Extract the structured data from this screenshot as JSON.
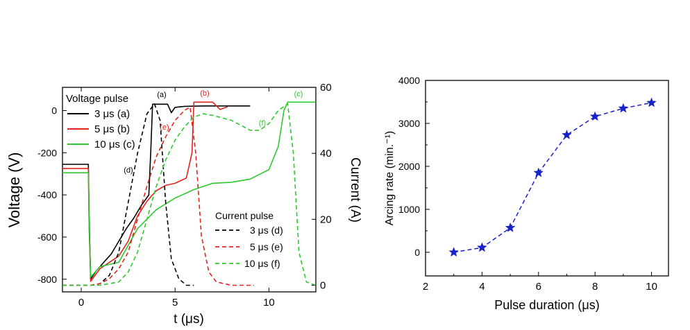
{
  "chart_data": [
    {
      "type": "line",
      "xlabel": "t (μs)",
      "ylabel": "Voltage (V)",
      "y2label": "Current (A)",
      "xlim": [
        -1,
        12.5
      ],
      "ylim": [
        -860,
        110
      ],
      "y2lim": [
        -2,
        60
      ],
      "x_ticks": [
        "0",
        "5",
        "10"
      ],
      "y_ticks": [
        "0",
        "-200",
        "-400",
        "-600",
        "-800"
      ],
      "y2_ticks": [
        "60",
        "40",
        "20",
        "0"
      ],
      "legend_voltage": {
        "title": "Voltage pulse",
        "entries": [
          "3 μs (a)",
          "5 μs (b)",
          "10 μs (c)"
        ]
      },
      "legend_current": {
        "title": "Current pulse",
        "entries": [
          "3 μs (d)",
          "5 μs (e)",
          "10 μs (f)"
        ]
      },
      "annotations": [
        "(a)",
        "(b)",
        "(c)",
        "(d)",
        "(e)",
        "(f)"
      ],
      "series": [
        {
          "name": "3 μs (a)",
          "axis": "left",
          "color": "#000000",
          "dash": "none",
          "x": [
            -1,
            0.38,
            0.42,
            0.5,
            0.8,
            1.2,
            1.6,
            2.0,
            2.4,
            2.8,
            3.2,
            3.6,
            3.7,
            3.8,
            4.2,
            4.6,
            4.8,
            5.0,
            5.5,
            6.5,
            9.0
          ],
          "y": [
            -255,
            -255,
            -500,
            -800,
            -760,
            -720,
            -680,
            -620,
            -560,
            -510,
            -450,
            -400,
            -200,
            30,
            30,
            30,
            -10,
            15,
            20,
            22,
            22
          ]
        },
        {
          "name": "5 μs (b)",
          "axis": "left",
          "color": "#e0231b",
          "dash": "none",
          "x": [
            -1,
            0.38,
            0.42,
            0.5,
            1.0,
            1.5,
            2.0,
            2.5,
            3.0,
            3.5,
            4.0,
            4.5,
            5.0,
            5.6,
            5.9,
            6.0,
            6.4,
            7.0,
            7.4,
            7.8
          ],
          "y": [
            -275,
            -275,
            -550,
            -810,
            -750,
            -720,
            -690,
            -620,
            -500,
            -430,
            -380,
            -355,
            -345,
            -320,
            -200,
            40,
            40,
            40,
            5,
            18
          ]
        },
        {
          "name": "10 μs (c)",
          "axis": "left",
          "color": "#2ec92e",
          "dash": "none",
          "x": [
            -1,
            0.38,
            0.42,
            0.5,
            1.0,
            2.0,
            3.0,
            4.0,
            5.0,
            6.0,
            7.0,
            8.0,
            9.0,
            10.0,
            10.5,
            10.8,
            11.0,
            12.5
          ],
          "y": [
            -295,
            -295,
            -550,
            -790,
            -740,
            -720,
            -560,
            -470,
            -415,
            -375,
            -345,
            -340,
            -325,
            -280,
            -170,
            0,
            40,
            40
          ]
        },
        {
          "name": "3 μs (d)",
          "axis": "right",
          "color": "#000000",
          "dash": "6,4",
          "x": [
            -1,
            0.5,
            1.0,
            1.5,
            2.0,
            2.5,
            3.0,
            3.5,
            3.9,
            4.2,
            4.5,
            4.8,
            5.2,
            5.6,
            6.0
          ],
          "y": [
            0,
            0,
            0.5,
            3,
            10,
            25,
            40,
            52,
            55,
            50,
            25,
            8,
            2,
            0,
            0
          ]
        },
        {
          "name": "5 μs (e)",
          "axis": "right",
          "color": "#e0231b",
          "dash": "6,4",
          "x": [
            -1,
            0.5,
            1.0,
            1.5,
            2.0,
            2.5,
            3.0,
            3.5,
            4.0,
            4.5,
            5.0,
            5.5,
            5.8,
            6.1,
            6.4,
            6.8,
            7.2,
            8.0,
            9.2
          ],
          "y": [
            0,
            0,
            0.5,
            2,
            5,
            10,
            20,
            30,
            39,
            45,
            50,
            53,
            54,
            40,
            15,
            4,
            1,
            0,
            0
          ]
        },
        {
          "name": "10 μs (f)",
          "axis": "right",
          "color": "#2ec92e",
          "dash": "6,4",
          "x": [
            -1,
            1.0,
            2.0,
            2.5,
            3.0,
            3.5,
            4.0,
            4.5,
            5.0,
            5.5,
            6.0,
            6.5,
            7.0,
            8.0,
            9.0,
            9.5,
            10.0,
            10.5,
            11.0,
            11.3,
            11.6,
            12.0,
            12.5
          ],
          "y": [
            0,
            0,
            1,
            4,
            10,
            20,
            30,
            38,
            44,
            48,
            51,
            52,
            51.5,
            50,
            47,
            47,
            49,
            53,
            55,
            40,
            10,
            1,
            0
          ]
        }
      ]
    },
    {
      "type": "line",
      "xlabel": "Pulse duration (μs)",
      "ylabel": "Arcing rate (min.⁻¹)",
      "xlim": [
        2,
        10.6
      ],
      "ylim": [
        -550,
        4000
      ],
      "x_ticks": [
        "2",
        "4",
        "6",
        "8",
        "10"
      ],
      "y_ticks": [
        "0",
        "1000",
        "2000",
        "3000",
        "4000"
      ],
      "color": "#1822c8",
      "x": [
        3,
        4,
        5,
        6,
        7,
        8,
        9,
        10
      ],
      "y": [
        0,
        110,
        570,
        1850,
        2730,
        3160,
        3350,
        3480
      ]
    }
  ]
}
